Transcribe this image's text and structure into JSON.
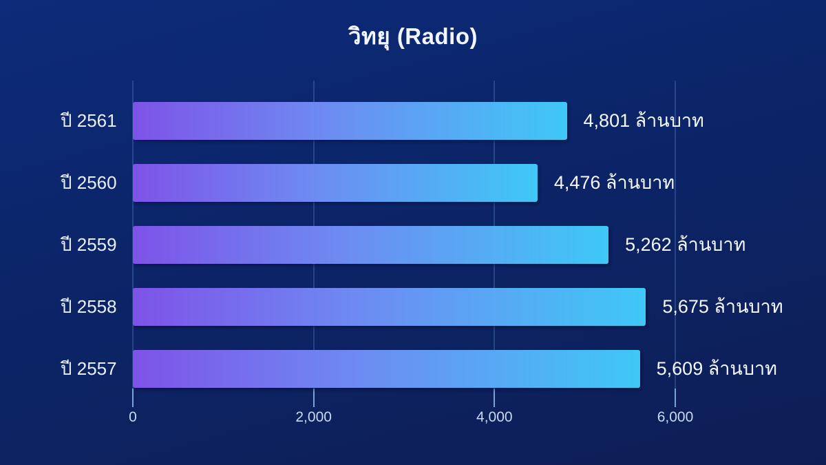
{
  "chart_data": {
    "type": "bar",
    "orientation": "horizontal",
    "title": "วิทยุ (Radio)",
    "unit": "ล้านบาท",
    "categories": [
      "ปี 2561",
      "ปี 2560",
      "ปี 2559",
      "ปี 2558",
      "ปี 2557"
    ],
    "values": [
      4801,
      4476,
      5262,
      5675,
      5609
    ],
    "value_labels": [
      "4,801 ล้านบาท",
      "4,476 ล้านบาท",
      "5,262 ล้านบาท",
      "5,675 ล้านบาท",
      "5,609 ล้านบาท"
    ],
    "xlim": [
      0,
      6000
    ],
    "x_ticks": [
      0,
      2000,
      4000,
      6000
    ],
    "x_tick_labels": [
      "0",
      "2,000",
      "4,000",
      "6,000"
    ],
    "grid": "vertical",
    "legend": false,
    "colors": {
      "background_top": "#0d2b7a",
      "background_bottom": "#0e1e55",
      "bar_gradient_start": "#7e53e8",
      "bar_gradient_mid": "#6d8cf2",
      "bar_gradient_end": "#3fc8f6",
      "gridline": "#5f8cd7",
      "title_text": "#f2f6ff",
      "label_text": "#e8efff",
      "tick_text": "#c9daf6"
    }
  }
}
